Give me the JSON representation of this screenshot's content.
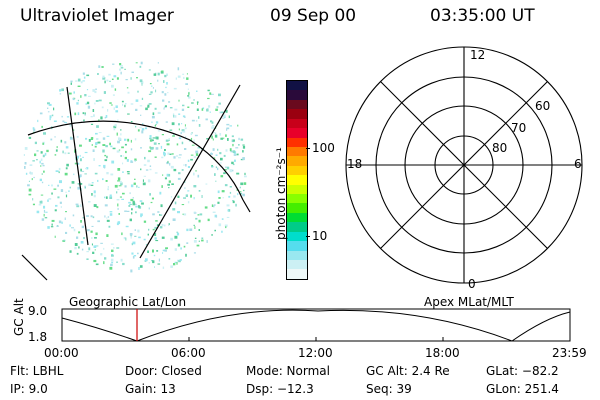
{
  "header": {
    "title": "Ultraviolet Imager",
    "date": "09 Sep 00",
    "time": "03:35:00 UT"
  },
  "colorbar": {
    "label": "photon cm⁻²s⁻¹",
    "ticks": [
      "100",
      "10"
    ],
    "colors": [
      "#111144",
      "#2a0a3a",
      "#6a0a1e",
      "#9a0010",
      "#c8001a",
      "#e8002a",
      "#ff3000",
      "#ff7a00",
      "#ffaa00",
      "#ffd000",
      "#ffff00",
      "#ccff00",
      "#88ff00",
      "#44ee00",
      "#00dd33",
      "#00cc88",
      "#00ddcc",
      "#55ddee",
      "#99e8f0",
      "#ccf0f4",
      "#eef8f8"
    ]
  },
  "polar": {
    "mlt_labels": [
      "12",
      "18",
      "6",
      "0"
    ],
    "lat_labels": [
      "60",
      "70",
      "80"
    ]
  },
  "timeline": {
    "ylabel": "GC Alt",
    "y_ticks": [
      "9.0",
      "1.8"
    ],
    "left_caption": "Geographic Lat/Lon",
    "right_caption": "Apex MLat/MLT",
    "x_ticks": [
      "00:00",
      "06:00",
      "12:00",
      "18:00",
      "23:59"
    ],
    "marker_color": "#cc0000"
  },
  "info": {
    "row1": {
      "flt": "Flt: LBHL",
      "door": "Door: Closed",
      "mode": "Mode: Normal",
      "gcalt": "GC Alt: 2.4 Re",
      "glat": "GLat: −82.2"
    },
    "row2": {
      "ip": "IP:  9.0",
      "gain": "Gain: 13",
      "dsp": "Dsp:  −12.3",
      "seq": "Seq: 39",
      "glon": "GLon: 251.4"
    }
  }
}
